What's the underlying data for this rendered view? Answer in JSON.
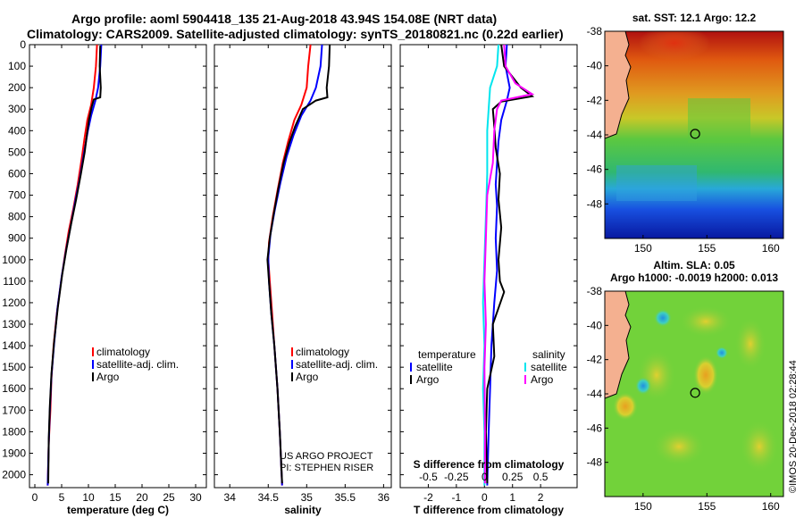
{
  "header": {
    "title_line1": "Argo profile: aoml 5904418_135 21-Aug-2018 43.94S 154.08E (NRT data)",
    "title_line2": "Climatology: CARS2009. Satellite-adjusted climatology: synTS_20180821.nc (0.22d earlier)"
  },
  "colors": {
    "climatology": "#ff0000",
    "satellite": "#0000ff",
    "argo": "#000000",
    "sat_salinity": "#00e5ee",
    "argo_salinity": "#ff00ff"
  },
  "chart_data": [
    {
      "type": "line",
      "id": "temperature",
      "xlabel": "temperature (deg C)",
      "xlim": [
        -1,
        32
      ],
      "xticks": [
        "0",
        "5",
        "10",
        "15",
        "20",
        "25",
        "30"
      ],
      "xtick_values": [
        0,
        5,
        10,
        15,
        20,
        25,
        30
      ],
      "ylim": [
        0,
        2060
      ],
      "yticks": [
        "0",
        "100",
        "200",
        "300",
        "400",
        "500",
        "600",
        "700",
        "800",
        "900",
        "1000",
        "1100",
        "1200",
        "1300",
        "1400",
        "1500",
        "1600",
        "1700",
        "1800",
        "1900",
        "2000"
      ],
      "ytick_values": [
        0,
        100,
        200,
        300,
        400,
        500,
        600,
        700,
        800,
        900,
        1000,
        1100,
        1200,
        1300,
        1400,
        1500,
        1600,
        1700,
        1800,
        1900,
        2000
      ],
      "legend": [
        "climatology",
        "satellite-adj. clim.",
        "Argo"
      ],
      "series": [
        {
          "name": "climatology",
          "color": "#ff0000",
          "points": [
            [
              11.6,
              0
            ],
            [
              11.4,
              100
            ],
            [
              11.0,
              200
            ],
            [
              10.5,
              280
            ],
            [
              9.8,
              350
            ],
            [
              9.3,
              430
            ],
            [
              8.8,
              520
            ],
            [
              8.0,
              650
            ],
            [
              7.2,
              760
            ],
            [
              6.3,
              870
            ],
            [
              5.6,
              980
            ],
            [
              4.9,
              1100
            ],
            [
              4.1,
              1250
            ],
            [
              3.5,
              1400
            ],
            [
              3.1,
              1550
            ],
            [
              2.9,
              1700
            ],
            [
              2.6,
              1850
            ],
            [
              2.4,
              2050
            ]
          ]
        },
        {
          "name": "satellite-adj. clim.",
          "color": "#0000ff",
          "points": [
            [
              12.4,
              0
            ],
            [
              12.2,
              100
            ],
            [
              11.8,
              200
            ],
            [
              11.3,
              260
            ],
            [
              10.5,
              330
            ],
            [
              9.9,
              400
            ],
            [
              9.2,
              500
            ],
            [
              8.4,
              620
            ],
            [
              7.6,
              720
            ],
            [
              6.7,
              840
            ],
            [
              5.8,
              960
            ],
            [
              5.0,
              1080
            ],
            [
              4.2,
              1230
            ],
            [
              3.6,
              1390
            ],
            [
              3.1,
              1540
            ],
            [
              2.8,
              1700
            ],
            [
              2.6,
              1850
            ],
            [
              2.4,
              2050
            ]
          ]
        },
        {
          "name": "Argo",
          "color": "#000000",
          "points": [
            [
              12.2,
              5
            ],
            [
              12.1,
              100
            ],
            [
              12.3,
              200
            ],
            [
              12.2,
              245
            ],
            [
              11.0,
              255
            ],
            [
              10.6,
              290
            ],
            [
              10.1,
              350
            ],
            [
              9.7,
              420
            ],
            [
              9.3,
              500
            ],
            [
              8.6,
              600
            ],
            [
              7.7,
              720
            ],
            [
              6.8,
              830
            ],
            [
              5.9,
              950
            ],
            [
              5.1,
              1070
            ],
            [
              4.3,
              1220
            ],
            [
              3.6,
              1380
            ],
            [
              3.1,
              1530
            ],
            [
              2.8,
              1680
            ],
            [
              2.6,
              1830
            ],
            [
              2.5,
              2040
            ]
          ]
        }
      ]
    },
    {
      "type": "line",
      "id": "salinity",
      "xlabel": "salinity",
      "xlim": [
        33.8,
        36.1
      ],
      "xticks": [
        "34",
        "34.5",
        "35",
        "35.5",
        "36"
      ],
      "xtick_values": [
        34,
        34.5,
        35,
        35.5,
        36
      ],
      "ylim": [
        0,
        2060
      ],
      "legend": [
        "climatology",
        "satellite-adj. clim.",
        "Argo"
      ],
      "annotation": [
        "US ARGO PROJECT",
        "PI: STEPHEN RISER"
      ],
      "series": [
        {
          "name": "climatology",
          "color": "#ff0000",
          "points": [
            [
              35.05,
              0
            ],
            [
              35.02,
              100
            ],
            [
              35.0,
              200
            ],
            [
              34.93,
              280
            ],
            [
              34.84,
              350
            ],
            [
              34.76,
              450
            ],
            [
              34.69,
              550
            ],
            [
              34.62,
              680
            ],
            [
              34.56,
              800
            ],
            [
              34.51,
              920
            ],
            [
              34.5,
              1000
            ],
            [
              34.52,
              1100
            ],
            [
              34.55,
              1250
            ],
            [
              34.58,
              1400
            ],
            [
              34.62,
              1600
            ],
            [
              34.65,
              1800
            ],
            [
              34.68,
              2050
            ]
          ]
        },
        {
          "name": "satellite-adj. clim.",
          "color": "#0000ff",
          "points": [
            [
              35.2,
              0
            ],
            [
              35.18,
              100
            ],
            [
              35.12,
              200
            ],
            [
              35.05,
              260
            ],
            [
              34.93,
              330
            ],
            [
              34.83,
              420
            ],
            [
              34.74,
              520
            ],
            [
              34.66,
              640
            ],
            [
              34.59,
              760
            ],
            [
              34.53,
              880
            ],
            [
              34.5,
              990
            ],
            [
              34.51,
              1100
            ],
            [
              34.54,
              1250
            ],
            [
              34.58,
              1400
            ],
            [
              34.62,
              1600
            ],
            [
              34.65,
              1800
            ],
            [
              34.68,
              2050
            ]
          ]
        },
        {
          "name": "Argo",
          "color": "#000000",
          "points": [
            [
              35.3,
              0
            ],
            [
              35.29,
              100
            ],
            [
              35.26,
              200
            ],
            [
              35.27,
              245
            ],
            [
              35.12,
              260
            ],
            [
              34.95,
              300
            ],
            [
              34.85,
              380
            ],
            [
              34.77,
              460
            ],
            [
              34.7,
              550
            ],
            [
              34.63,
              670
            ],
            [
              34.57,
              790
            ],
            [
              34.52,
              900
            ],
            [
              34.49,
              1000
            ],
            [
              34.51,
              1100
            ],
            [
              34.54,
              1250
            ],
            [
              34.58,
              1400
            ],
            [
              34.62,
              1600
            ],
            [
              34.65,
              1800
            ],
            [
              34.68,
              2040
            ]
          ]
        }
      ]
    },
    {
      "type": "line",
      "id": "difference",
      "xlabel": "T difference from climatology",
      "xlabel2": "S difference from climatology",
      "xlim": [
        -3,
        3.3
      ],
      "xticks": [
        "-2",
        "-1",
        "0",
        "1",
        "2"
      ],
      "xtick_values": [
        -2,
        -1,
        0,
        1,
        2
      ],
      "xticks2": [
        "-0.5",
        "-0.25",
        "0",
        "0.25",
        "0.5"
      ],
      "xtick2_positions": [
        -2,
        -1,
        0,
        1,
        2
      ],
      "ylim": [
        0,
        2060
      ],
      "legend_left_title": "temperature",
      "legend_left": [
        "satellite",
        "Argo"
      ],
      "legend_right_title": "salinity",
      "legend_right": [
        "satellite",
        "Argo"
      ],
      "series": [
        {
          "name": "T satellite",
          "color": "#0000ff",
          "points": [
            [
              0.8,
              0
            ],
            [
              0.75,
              100
            ],
            [
              0.9,
              200
            ],
            [
              0.8,
              260
            ],
            [
              0.6,
              350
            ],
            [
              0.5,
              450
            ],
            [
              0.45,
              550
            ],
            [
              0.4,
              650
            ],
            [
              0.45,
              750
            ],
            [
              0.4,
              900
            ],
            [
              0.45,
              1050
            ],
            [
              0.35,
              1200
            ],
            [
              0.25,
              1400
            ],
            [
              0.2,
              1600
            ],
            [
              0.15,
              1800
            ],
            [
              0.1,
              2050
            ]
          ]
        },
        {
          "name": "T Argo",
          "color": "#000000",
          "points": [
            [
              0.6,
              0
            ],
            [
              0.7,
              100
            ],
            [
              1.3,
              200
            ],
            [
              1.7,
              240
            ],
            [
              0.6,
              265
            ],
            [
              0.3,
              300
            ],
            [
              0.35,
              380
            ],
            [
              0.4,
              480
            ],
            [
              0.55,
              600
            ],
            [
              0.5,
              720
            ],
            [
              0.6,
              850
            ],
            [
              0.5,
              1000
            ],
            [
              0.55,
              1100
            ],
            [
              0.7,
              1150
            ],
            [
              0.3,
              1300
            ],
            [
              0.35,
              1450
            ],
            [
              0.1,
              1600
            ],
            [
              0.05,
              1800
            ],
            [
              0.1,
              2040
            ]
          ]
        },
        {
          "name": "S satellite",
          "color": "#00e5ee",
          "points": [
            [
              0.5,
              0
            ],
            [
              0.45,
              100
            ],
            [
              0.2,
              200
            ],
            [
              0.15,
              300
            ],
            [
              0.1,
              400
            ],
            [
              0.1,
              600
            ],
            [
              0.05,
              800
            ],
            [
              0.0,
              1000
            ],
            [
              -0.05,
              1200
            ],
            [
              0.0,
              1400
            ],
            [
              -0.05,
              1600
            ],
            [
              0.0,
              1800
            ],
            [
              0.0,
              2050
            ]
          ]
        },
        {
          "name": "S Argo",
          "color": "#ff00ff",
          "points": [
            [
              0.7,
              0
            ],
            [
              0.75,
              100
            ],
            [
              1.1,
              180
            ],
            [
              1.7,
              230
            ],
            [
              0.6,
              260
            ],
            [
              0.45,
              300
            ],
            [
              0.35,
              400
            ],
            [
              0.3,
              550
            ],
            [
              0.1,
              700
            ],
            [
              0.05,
              900
            ],
            [
              0.0,
              1100
            ],
            [
              0.05,
              1300
            ],
            [
              0.0,
              1500
            ],
            [
              0.02,
              1800
            ],
            [
              0.02,
              2040
            ]
          ]
        }
      ]
    },
    {
      "type": "heatmap",
      "id": "sst_map",
      "title": "sat. SST: 12.1 Argo: 12.2",
      "xlim": [
        147,
        161
      ],
      "ylim": [
        -50,
        -38
      ],
      "xticks": [
        "150",
        "155",
        "160"
      ],
      "xtick_values": [
        150,
        155,
        160
      ],
      "yticks": [
        "-38",
        "-40",
        "-42",
        "-44",
        "-46",
        "-48"
      ],
      "ytick_values": [
        -38,
        -40,
        -42,
        -44,
        -46,
        -48
      ],
      "argo_position": [
        154.08,
        -43.94
      ]
    },
    {
      "type": "heatmap",
      "id": "sla_map",
      "title": "Altim. SLA: 0.05",
      "subtitle": "Argo h1000: -0.0019 h2000: 0.013",
      "xlim": [
        147,
        161
      ],
      "ylim": [
        -50,
        -38
      ],
      "xticks": [
        "150",
        "155",
        "160"
      ],
      "xtick_values": [
        150,
        155,
        160
      ],
      "yticks": [
        "-38",
        "-40",
        "-42",
        "-44",
        "-46",
        "-48"
      ],
      "ytick_values": [
        -38,
        -40,
        -42,
        -44,
        -46,
        -48
      ],
      "argo_position": [
        154.08,
        -43.94
      ]
    }
  ],
  "footer": {
    "credit": "©IMOS 20-Dec-2018 02:28:44"
  }
}
